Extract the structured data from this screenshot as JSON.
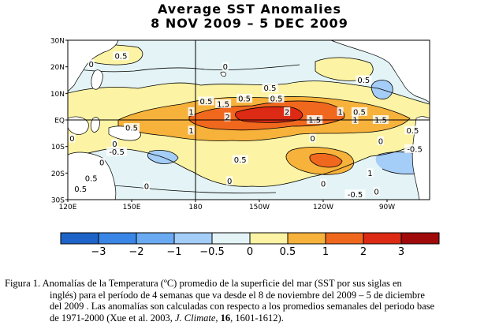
{
  "chart_data": {
    "type": "heatmap",
    "title": "Average SST Anomalies",
    "subtitle": "8 NOV 2009 – 5 DEC 2009",
    "x_ticks": [
      "120E",
      "150E",
      "180",
      "150W",
      "120W",
      "90W"
    ],
    "y_ticks": [
      "30N",
      "20N",
      "10N",
      "EQ",
      "10S",
      "20S",
      "30S"
    ],
    "xlim_degrees_east": [
      120,
      290
    ],
    "ylim_degrees_north": [
      -30,
      30
    ],
    "colorbar": {
      "ticks": [
        "−3",
        "−2",
        "−1",
        "−0.5",
        "0",
        "0.5",
        "1",
        "2",
        "3"
      ],
      "levels": [
        -3,
        -2,
        -1,
        -0.5,
        0,
        0.5,
        1,
        2,
        3
      ],
      "colors": [
        "#1e63c8",
        "#3a86e6",
        "#6aaaf2",
        "#a4cdf7",
        "#e4f4f6",
        "#fcf3a4",
        "#f7b23b",
        "#f0681e",
        "#dc2a14",
        "#a00a0a"
      ]
    },
    "contour_labels": [
      {
        "text": "0.5",
        "lon": 145,
        "lat": 24
      },
      {
        "text": "0",
        "lon": 131,
        "lat": 21
      },
      {
        "text": "0",
        "lon": 194,
        "lat": 20
      },
      {
        "text": "0.5",
        "lon": 259,
        "lat": 15
      },
      {
        "text": "0.5",
        "lon": 185,
        "lat": 7
      },
      {
        "text": "1.5",
        "lon": 193,
        "lat": 6
      },
      {
        "text": "0.5",
        "lon": 203,
        "lat": 8
      },
      {
        "text": "0.5",
        "lon": 215,
        "lat": 12
      },
      {
        "text": "0.5",
        "lon": 218,
        "lat": 8
      },
      {
        "text": "1",
        "lon": 178,
        "lat": 3
      },
      {
        "text": "2",
        "lon": 195,
        "lat": 1
      },
      {
        "text": "2",
        "lon": 223,
        "lat": 3
      },
      {
        "text": "1",
        "lon": 248,
        "lat": 3
      },
      {
        "text": "0.5",
        "lon": 257,
        "lat": 3
      },
      {
        "text": "1.5",
        "lon": 236,
        "lat": 0
      },
      {
        "text": "1",
        "lon": 255,
        "lat": 0
      },
      {
        "text": "1.5",
        "lon": 267,
        "lat": 0
      },
      {
        "text": "0.5",
        "lon": 282,
        "lat": -4
      },
      {
        "text": "1",
        "lon": 178,
        "lat": -4
      },
      {
        "text": "0.5",
        "lon": 150,
        "lat": -3
      },
      {
        "text": "0",
        "lon": 142,
        "lat": -9
      },
      {
        "text": "0",
        "lon": 122,
        "lat": -7
      },
      {
        "text": "-0.5",
        "lon": 143,
        "lat": -12
      },
      {
        "text": "0",
        "lon": 235,
        "lat": -7
      },
      {
        "text": "0",
        "lon": 267,
        "lat": -8
      },
      {
        "text": "-0.5",
        "lon": 283,
        "lat": -11
      },
      {
        "text": "0.5",
        "lon": 201,
        "lat": -15
      },
      {
        "text": "0",
        "lon": 136,
        "lat": -16
      },
      {
        "text": "0.5",
        "lon": 131,
        "lat": -22
      },
      {
        "text": "1",
        "lon": 262,
        "lat": -20
      },
      {
        "text": "0",
        "lon": 196,
        "lat": -23
      },
      {
        "text": "0",
        "lon": 240,
        "lat": -24
      },
      {
        "text": "0",
        "lon": 157,
        "lat": -25
      },
      {
        "text": "-0.5",
        "lon": 255,
        "lat": -28
      },
      {
        "text": "0",
        "lon": 265,
        "lat": -27
      },
      {
        "text": "0.5",
        "lon": 126,
        "lat": -26
      }
    ]
  },
  "caption": {
    "line1": "Figura 1.  Anomalías de la Temperatura (ºC) promedio de la superficie del mar (SST por sus siglas en",
    "line2": "inglés) para el período de 4 semanas que va desde el  8 de noviembre del 2009 – 5 de diciembre",
    "line3": "del 2009 .  Las anomalías son calculadas con respecto a los promedios semanales del periodo base",
    "line4_a": "de 1971-2000  (Xue et al. 2003, ",
    "line4_journal": "J. Climate",
    "line4_b": ", ",
    "line4_volume": "16",
    "line4_c": ", 1601-1612)."
  },
  "colors": {
    "land": "#ffffff",
    "ocean_background": "#e4f4f6",
    "contour": "#000000"
  }
}
